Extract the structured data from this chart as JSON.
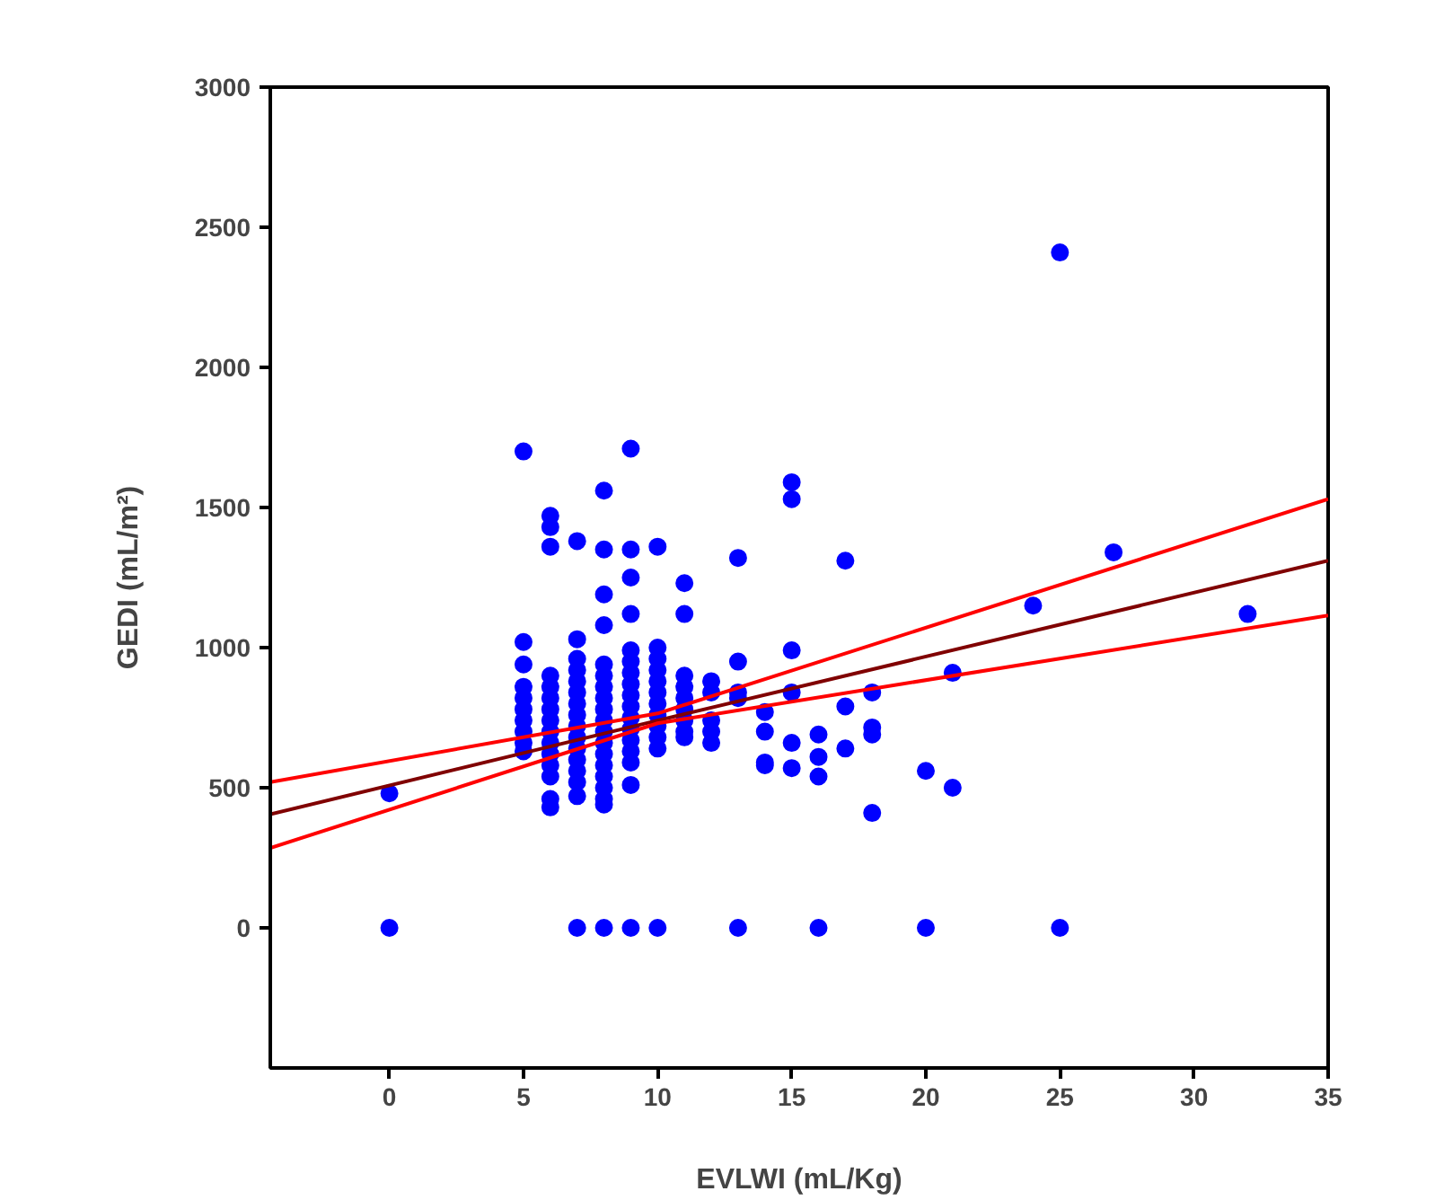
{
  "chart_data": {
    "type": "scatter",
    "xlabel": "EVLWI (mL/Kg)",
    "ylabel": "GEDI (mL/m²)",
    "xlim": [
      -4.44,
      35
    ],
    "xticks": [
      0,
      5,
      10,
      15,
      20,
      25,
      30,
      35
    ],
    "ylim": [
      -500,
      3000
    ],
    "yticks": [
      0,
      500,
      1000,
      1500,
      2000,
      2500,
      3000
    ],
    "series": [
      {
        "marker": "circle",
        "color": "#0000ff",
        "x": [
          0,
          0,
          5,
          5,
          5,
          5,
          5,
          5,
          5,
          5,
          5,
          5,
          6,
          6,
          6,
          6,
          6,
          6,
          6,
          6,
          6,
          6,
          6,
          6,
          6,
          6,
          6,
          7,
          7,
          7,
          7,
          7,
          7,
          7,
          7,
          7,
          7,
          7,
          7,
          7,
          7,
          7,
          7,
          8,
          8,
          8,
          8,
          8,
          8,
          8,
          8,
          8,
          8,
          8,
          8,
          8,
          8,
          8,
          8,
          8,
          8,
          8,
          9,
          9,
          9,
          9,
          9,
          9,
          9,
          9,
          9,
          9,
          9,
          9,
          9,
          9,
          9,
          9,
          9,
          10,
          10,
          10,
          10,
          10,
          10,
          10,
          10,
          10,
          10,
          10,
          10,
          11,
          11,
          11,
          11,
          11,
          11,
          11,
          11,
          11,
          12,
          12,
          12,
          12,
          12,
          13,
          13,
          13,
          13,
          13,
          14,
          14,
          14,
          14,
          15,
          15,
          15,
          15,
          15,
          15,
          16,
          16,
          16,
          16,
          17,
          17,
          17,
          18,
          18,
          18,
          18,
          20,
          20,
          21,
          21,
          24,
          25,
          25,
          27,
          32
        ],
        "values": [
          480,
          0,
          1700,
          1020,
          940,
          860,
          820,
          780,
          740,
          700,
          660,
          630,
          1470,
          1430,
          1360,
          900,
          860,
          820,
          780,
          740,
          700,
          660,
          620,
          580,
          540,
          460,
          430,
          1380,
          1030,
          960,
          920,
          880,
          840,
          800,
          760,
          720,
          680,
          640,
          600,
          560,
          520,
          470,
          0,
          1560,
          1350,
          1190,
          1080,
          940,
          900,
          860,
          820,
          780,
          740,
          700,
          660,
          620,
          580,
          540,
          500,
          460,
          440,
          0,
          1710,
          1350,
          1250,
          1120,
          990,
          950,
          910,
          870,
          830,
          790,
          750,
          710,
          670,
          630,
          590,
          510,
          0,
          1360,
          1000,
          960,
          920,
          880,
          840,
          800,
          760,
          720,
          680,
          640,
          0,
          1230,
          1120,
          900,
          860,
          820,
          780,
          740,
          700,
          680,
          880,
          840,
          740,
          700,
          660,
          1320,
          950,
          840,
          820,
          0,
          770,
          700,
          590,
          580,
          1590,
          1530,
          990,
          840,
          660,
          570,
          690,
          610,
          540,
          0,
          1310,
          790,
          640,
          840,
          715,
          690,
          410,
          560,
          0,
          910,
          500,
          1150,
          2410,
          0,
          1340,
          1120
        ]
      },
      {
        "type": "line",
        "marker": "none",
        "color": "#800000",
        "x": [
          -4.44,
          10,
          35
        ],
        "values": [
          405,
          740,
          1310
        ]
      },
      {
        "type": "line",
        "marker": "none",
        "color": "#ff0000",
        "x": [
          -4.44,
          10,
          35
        ],
        "values": [
          520,
          765,
          1530
        ]
      },
      {
        "type": "line",
        "marker": "none",
        "color": "#ff0000",
        "x": [
          -4.44,
          10,
          35
        ],
        "values": [
          285,
          730,
          1115
        ]
      }
    ]
  }
}
